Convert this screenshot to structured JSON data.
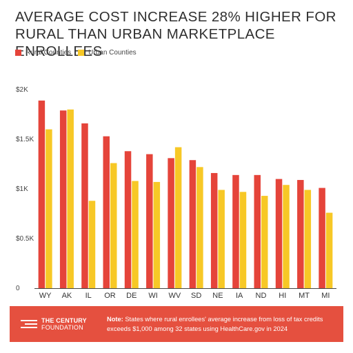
{
  "title": "AVERAGE COST INCREASE 28% HIGHER FOR RURAL THAN URBAN MARKETPLACE ENROLLEES",
  "colors": {
    "rural": "#e5443a",
    "urban": "#f7c826",
    "footer_bg": "#e5503f",
    "axis": "#444444"
  },
  "legend": {
    "rural_label": "Rural Counties",
    "urban_label": "Urban Counties"
  },
  "footer": {
    "org_name_line1": "THE CENTURY",
    "org_name_line2": "FOUNDATION",
    "note_label": "Note:",
    "note_text": "States where rural enrollees' average increase from loss of tax credits exceeds $1,000 among 32 states using HealthCare.gov in 2024"
  },
  "chart_data": {
    "type": "bar",
    "title": "AVERAGE COST INCREASE 28% HIGHER FOR RURAL THAN URBAN MARKETPLACE ENROLLEES",
    "categories": [
      "WY",
      "AK",
      "IL",
      "OR",
      "DE",
      "WI",
      "WV",
      "SD",
      "NE",
      "IA",
      "ND",
      "HI",
      "MT",
      "MI"
    ],
    "series": [
      {
        "name": "Rural Counties",
        "values": [
          1890,
          1790,
          1660,
          1530,
          1380,
          1350,
          1310,
          1290,
          1160,
          1140,
          1140,
          1100,
          1090,
          1010
        ]
      },
      {
        "name": "Urban Counties",
        "values": [
          1600,
          1800,
          880,
          1260,
          1080,
          1070,
          1420,
          1220,
          990,
          970,
          930,
          1040,
          990,
          760
        ]
      }
    ],
    "yticks": [
      {
        "value": 0,
        "label": "0"
      },
      {
        "value": 500,
        "label": "$0.5K"
      },
      {
        "value": 1000,
        "label": "$1K"
      },
      {
        "value": 1500,
        "label": "$1.5K"
      },
      {
        "value": 2000,
        "label": "$2K"
      }
    ],
    "ylim": [
      0,
      2000
    ],
    "xlabel": "",
    "ylabel": "",
    "grid": false,
    "legend_position": "top-left"
  }
}
